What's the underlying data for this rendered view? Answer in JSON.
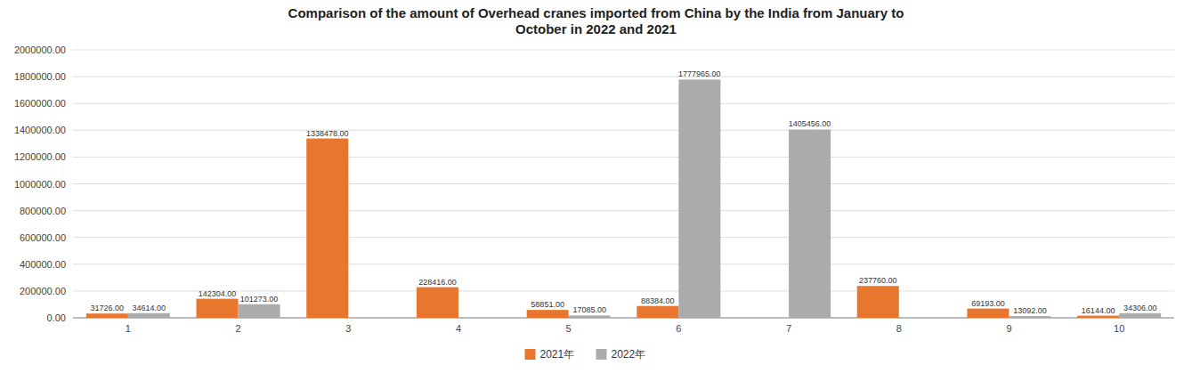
{
  "chart_data": {
    "type": "bar",
    "title": "Comparison of the amount of Overhead cranes imported from China by the India from January to\nOctober in 2022 and 2021",
    "categories": [
      1,
      2,
      3,
      4,
      5,
      6,
      7,
      8,
      9,
      10
    ],
    "series": [
      {
        "name": "2021年",
        "color": "#E8762C",
        "values": [
          31726,
          142304,
          1338478,
          228416,
          58851,
          88384,
          0,
          237760,
          69193,
          16144
        ],
        "value_labels": [
          "31726.00",
          "142304.00",
          "1338478.00",
          "228416.00",
          "58851.00",
          "88384.00",
          null,
          "237760.00",
          "69193.00",
          "16144.00"
        ]
      },
      {
        "name": "2022年",
        "color": "#ABABAB",
        "values": [
          34614,
          101273,
          0,
          0,
          17085,
          1777965,
          1405456,
          0,
          13092,
          34306
        ],
        "value_labels": [
          "34614.00",
          "101273.00",
          null,
          null,
          "17085.00",
          "1777965.00",
          "1405456.00",
          null,
          "13092.00",
          "34306.00"
        ]
      }
    ],
    "ylim": [
      0,
      2000000
    ],
    "yticks": [
      {
        "value": 0,
        "label": "0.00"
      },
      {
        "value": 200000,
        "label": "200000.00"
      },
      {
        "value": 400000,
        "label": "400000.00"
      },
      {
        "value": 600000,
        "label": "600000.00"
      },
      {
        "value": 800000,
        "label": "800000.00"
      },
      {
        "value": 1000000,
        "label": "1000000.00"
      },
      {
        "value": 1200000,
        "label": "1200000.00"
      },
      {
        "value": 1400000,
        "label": "1400000.00"
      },
      {
        "value": 1600000,
        "label": "1600000.00"
      },
      {
        "value": 1800000,
        "label": "1800000.00"
      },
      {
        "value": 2000000,
        "label": "2000000.00"
      }
    ],
    "grid": true,
    "legend": "bottom",
    "data_labels": true
  }
}
